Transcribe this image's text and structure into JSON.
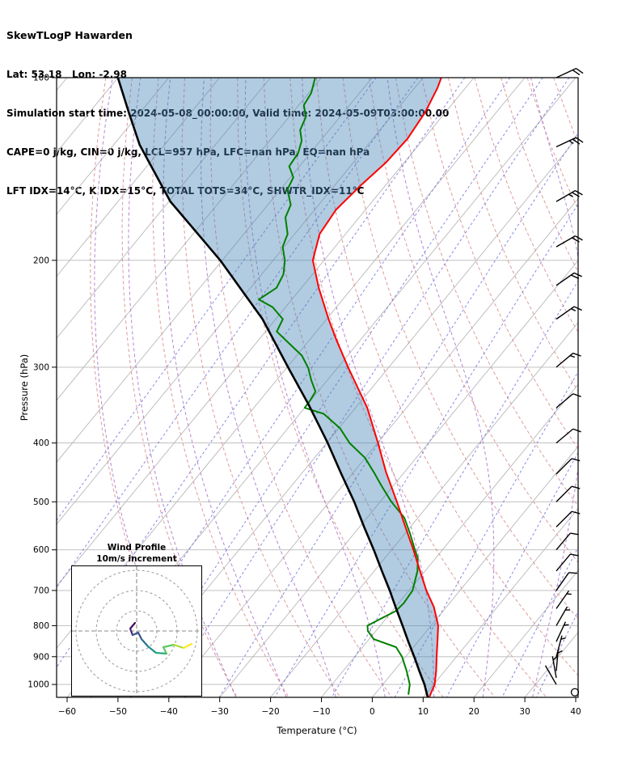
{
  "header": {
    "title": "SkewTLogP Hawarden",
    "lat_lon": "Lat: 53.18   Lon: -2.98",
    "times": "Simulation start time: 2024-05-08_00:00:00, Valid time: 2024-05-09T03:00:00.00",
    "indices1": "CAPE=0 j/kg, CIN=0 j/kg, LCL=957 hPa, LFC=nan hPa, EQ=nan hPa",
    "indices2": "LFT IDX=14°C, K IDX=15°C, TOTAL TOTS=34°C, SHWTR_IDX=11°C"
  },
  "chart_data": {
    "type": "skewt-logp",
    "xlabel": "Temperature (°C)",
    "ylabel": "Pressure (hPa)",
    "x_ticks": [
      -60,
      -50,
      -40,
      -30,
      -20,
      -10,
      0,
      10,
      20,
      30,
      40
    ],
    "y_ticks": [
      100,
      200,
      300,
      400,
      500,
      600,
      700,
      800,
      900,
      1000
    ],
    "x_axis_range_c": [
      -62,
      40.5
    ],
    "pressure_range_hpa": [
      100,
      1050
    ],
    "grid": true,
    "isotherm_step_c": 10,
    "dry_adiabats_theta_c": [
      -40,
      -30,
      -20,
      -10,
      0,
      10,
      20,
      30,
      40,
      50,
      60,
      70,
      80,
      90,
      100,
      110,
      120,
      130,
      140,
      150,
      160,
      170
    ],
    "moist_adiabats_t0_c": [
      -40,
      -30,
      -20,
      -10,
      0,
      10,
      20,
      30
    ],
    "mixing_ratio_g_kg": [
      0.0002,
      0.001,
      0.005,
      0.02,
      0.05,
      0.1,
      0.3,
      0.8,
      2,
      5,
      10,
      20,
      30
    ],
    "temperature_profile_hpa_c": [
      [
        1050,
        11.2
      ],
      [
        1000,
        10.2
      ],
      [
        950,
        8.3
      ],
      [
        900,
        6.1
      ],
      [
        847,
        3.7
      ],
      [
        800,
        1.4
      ],
      [
        746,
        -2.4
      ],
      [
        700,
        -6.6
      ],
      [
        650,
        -11.0
      ],
      [
        600,
        -15.7
      ],
      [
        548,
        -21.2
      ],
      [
        500,
        -26.7
      ],
      [
        447,
        -33.6
      ],
      [
        400,
        -39.9
      ],
      [
        350,
        -47.7
      ],
      [
        301,
        -57.8
      ],
      [
        271,
        -64.6
      ],
      [
        250,
        -69.6
      ],
      [
        222,
        -76.6
      ],
      [
        200,
        -82.2
      ],
      [
        181,
        -85.1
      ],
      [
        165,
        -85.8
      ],
      [
        151,
        -84.9
      ],
      [
        138,
        -83.6
      ],
      [
        126,
        -83.2
      ],
      [
        114,
        -84.0
      ],
      [
        104,
        -85.5
      ],
      [
        100,
        -86.4
      ]
    ],
    "dewpoint_profile_hpa_c": [
      [
        1037,
        6.6
      ],
      [
        1000,
        5.3
      ],
      [
        950,
        2.5
      ],
      [
        900,
        -0.7
      ],
      [
        868,
        -3.4
      ],
      [
        842,
        -9.1
      ],
      [
        816,
        -11.6
      ],
      [
        800,
        -12.5
      ],
      [
        780,
        -11.1
      ],
      [
        757,
        -9.3
      ],
      [
        734,
        -9.0
      ],
      [
        700,
        -9.3
      ],
      [
        650,
        -11.5
      ],
      [
        619,
        -13.5
      ],
      [
        600,
        -15.4
      ],
      [
        564,
        -19.0
      ],
      [
        531,
        -22.7
      ],
      [
        500,
        -27.8
      ],
      [
        470,
        -32.4
      ],
      [
        447,
        -36.0
      ],
      [
        423,
        -40.1
      ],
      [
        400,
        -45.5
      ],
      [
        378,
        -49.8
      ],
      [
        358,
        -55.3
      ],
      [
        350,
        -60.0
      ],
      [
        341,
        -60.1
      ],
      [
        329,
        -60.5
      ],
      [
        315,
        -63.2
      ],
      [
        301,
        -65.7
      ],
      [
        287,
        -69.0
      ],
      [
        274,
        -73.5
      ],
      [
        262,
        -77.8
      ],
      [
        250,
        -78.6
      ],
      [
        239,
        -82.5
      ],
      [
        232,
        -86.5
      ],
      [
        222,
        -84.9
      ],
      [
        211,
        -85.7
      ],
      [
        200,
        -87.7
      ],
      [
        190,
        -90.3
      ],
      [
        181,
        -91.4
      ],
      [
        170,
        -94.5
      ],
      [
        162,
        -95.5
      ],
      [
        153,
        -98.6
      ],
      [
        146,
        -99.4
      ],
      [
        140,
        -102.0
      ],
      [
        133,
        -102.4
      ],
      [
        127,
        -103.7
      ],
      [
        122,
        -105.7
      ],
      [
        116,
        -106.7
      ],
      [
        111,
        -109.0
      ],
      [
        106,
        -109.5
      ],
      [
        100,
        -111.2
      ]
    ],
    "parcel_profile_hpa_c": [
      [
        1050,
        10.9
      ],
      [
        1000,
        8.2
      ],
      [
        950,
        5.0
      ],
      [
        900,
        1.7
      ],
      [
        850,
        -1.9
      ],
      [
        800,
        -5.6
      ],
      [
        750,
        -9.6
      ],
      [
        700,
        -13.8
      ],
      [
        650,
        -18.5
      ],
      [
        600,
        -23.5
      ],
      [
        550,
        -29.1
      ],
      [
        500,
        -35.1
      ],
      [
        450,
        -42.1
      ],
      [
        400,
        -49.8
      ],
      [
        346,
        -59.7
      ],
      [
        301,
        -69.6
      ],
      [
        250,
        -82.6
      ],
      [
        200,
        -100.4
      ],
      [
        160,
        -119.7
      ],
      [
        129,
        -134.9
      ],
      [
        114,
        -142.3
      ],
      [
        100,
        -150.0
      ]
    ],
    "wind_barbs": [
      {
        "p": 100,
        "speed_ms": 20,
        "dir_from_deg": 245
      },
      {
        "p": 130,
        "speed_ms": 25,
        "dir_from_deg": 245
      },
      {
        "p": 160,
        "speed_ms": 25,
        "dir_from_deg": 240
      },
      {
        "p": 190,
        "speed_ms": 20,
        "dir_from_deg": 240
      },
      {
        "p": 220,
        "speed_ms": 18,
        "dir_from_deg": 235
      },
      {
        "p": 250,
        "speed_ms": 15,
        "dir_from_deg": 235
      },
      {
        "p": 300,
        "speed_ms": 15,
        "dir_from_deg": 230
      },
      {
        "p": 350,
        "speed_ms": 12,
        "dir_from_deg": 230
      },
      {
        "p": 400,
        "speed_ms": 12,
        "dir_from_deg": 230
      },
      {
        "p": 450,
        "speed_ms": 10,
        "dir_from_deg": 225
      },
      {
        "p": 500,
        "speed_ms": 10,
        "dir_from_deg": 225
      },
      {
        "p": 550,
        "speed_ms": 10,
        "dir_from_deg": 225
      },
      {
        "p": 600,
        "speed_ms": 8,
        "dir_from_deg": 220
      },
      {
        "p": 650,
        "speed_ms": 8,
        "dir_from_deg": 220
      },
      {
        "p": 700,
        "speed_ms": 8,
        "dir_from_deg": 215
      },
      {
        "p": 750,
        "speed_ms": 6,
        "dir_from_deg": 215
      },
      {
        "p": 800,
        "speed_ms": 5,
        "dir_from_deg": 210
      },
      {
        "p": 850,
        "speed_ms": 5,
        "dir_from_deg": 205
      },
      {
        "p": 900,
        "speed_ms": 4,
        "dir_from_deg": 195
      },
      {
        "p": 950,
        "speed_ms": 3,
        "dir_from_deg": 185
      },
      {
        "p": 975,
        "speed_ms": 3,
        "dir_from_deg": 170
      },
      {
        "p": 1000,
        "speed_ms": 2,
        "dir_from_deg": 150
      },
      {
        "p": 1030,
        "speed_ms": 0,
        "dir_from_deg": 0
      }
    ],
    "hodograph": {
      "title": "Wind Profile",
      "subtitle": "10m/s increment",
      "ring_interval_ms": 10,
      "rings_ms": [
        10,
        20,
        30
      ],
      "trace_uv_ms": [
        [
          -0.8,
          4
        ],
        [
          -3.2,
          1.2
        ],
        [
          -2,
          -2
        ],
        [
          0.8,
          -0.8
        ],
        [
          2.4,
          -4
        ],
        [
          5.6,
          -7.6
        ],
        [
          9.6,
          -10.8
        ],
        [
          14.8,
          -11.2
        ],
        [
          13.2,
          -8
        ],
        [
          18.4,
          -6.8
        ],
        [
          23.2,
          -8.4
        ],
        [
          27.2,
          -6.4
        ]
      ]
    },
    "colors": {
      "temperature": "#ff0000",
      "dewpoint": "#008000",
      "parcel": "#000000",
      "shade": "rgba(70,130,180,0.42)",
      "isotherm": "#b8b8b8",
      "pressure_line": "#b8b8b8",
      "dry_adiabat": "#dc9090",
      "moist_adiabat": "#a873c8",
      "mixing_ratio": "#6a6ade",
      "barb": "#000000",
      "hodo_ring": "#999999",
      "trace_palette": [
        "#46085c",
        "#472a7a",
        "#3b518b",
        "#2c718e",
        "#21908d",
        "#27ad81",
        "#5cc863",
        "#aadc32",
        "#fde725"
      ]
    }
  }
}
